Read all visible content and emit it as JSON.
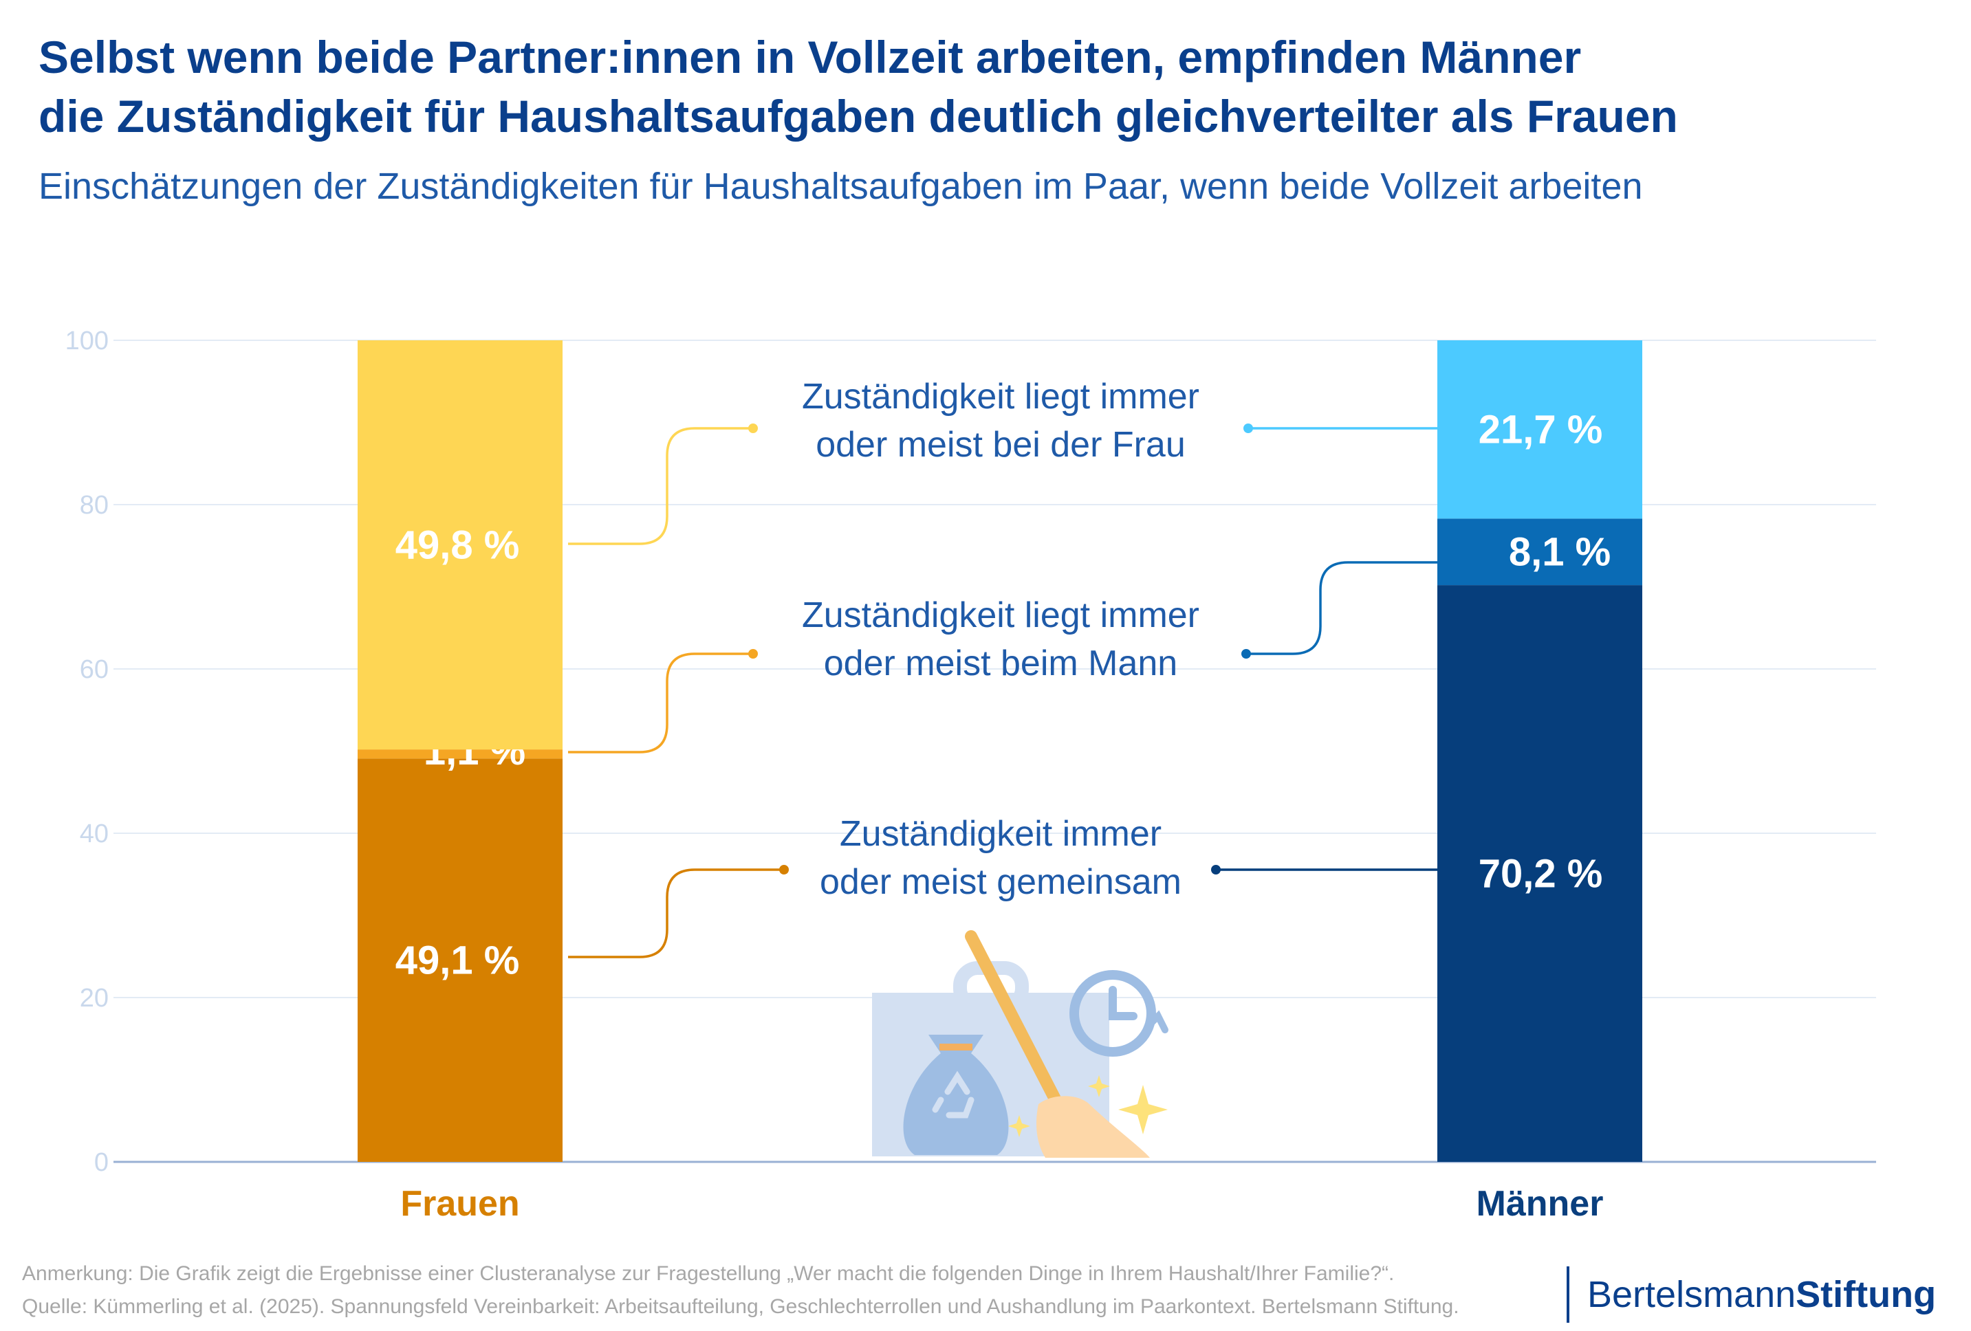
{
  "header": {
    "title_line1": "Selbst wenn beide Partner:innen in Vollzeit arbeiten, empfinden Männer",
    "title_line2": "die Zuständigkeit für Haushaltsaufgaben deutlich gleichverteilter als Frauen",
    "subtitle": "Einschätzungen der Zuständigkeiten für Haushaltsaufgaben im Paar, wenn beide Vollzeit arbeiten"
  },
  "chart_data": {
    "type": "bar",
    "stacked": true,
    "ylim": [
      0,
      100
    ],
    "yticks": [
      "0",
      "20",
      "40",
      "60",
      "80",
      "100"
    ],
    "grid": true,
    "categories": [
      "Frauen",
      "Männer"
    ],
    "category_colors": [
      "#d68000",
      "#0a3f7e"
    ],
    "series": [
      {
        "name_line1": "Zuständigkeit immer",
        "name_line2": "oder meist gemeinsam",
        "values": [
          49.1,
          70.2
        ],
        "labels": [
          "49,1 %",
          "70,2 %"
        ],
        "colors": [
          "#d68000",
          "#063e7c"
        ]
      },
      {
        "name_line1": "Zuständigkeit liegt immer",
        "name_line2": "oder meist beim Mann",
        "values": [
          1.1,
          8.1
        ],
        "labels": [
          "1,1 %",
          "8,1 %"
        ],
        "colors": [
          "#f5a623",
          "#0a6bb5"
        ]
      },
      {
        "name_line1": "Zuständigkeit liegt immer",
        "name_line2": "oder meist bei der Frau",
        "values": [
          49.8,
          21.7
        ],
        "labels": [
          "49,8 %",
          "21,7 %"
        ],
        "colors": [
          "#fed654",
          "#4ccaff"
        ]
      }
    ]
  },
  "icon": "household-chores-icon",
  "footnote": {
    "note": "Anmerkung: Die Grafik zeigt die Ergebnisse einer Clusteranalyse zur Fragestellung „Wer macht die folgenden Dinge in Ihrem Haushalt/Ihrer Familie?“.",
    "source": "Quelle: Kümmerling et al. (2025). Spannungsfeld Vereinbarkeit: Arbeitsaufteilung, Geschlechterrollen und Aushandlung im Paarkontext. Bertelsmann Stiftung."
  },
  "brand": {
    "part1": "Bertelsmann",
    "part2": "Stiftung"
  }
}
